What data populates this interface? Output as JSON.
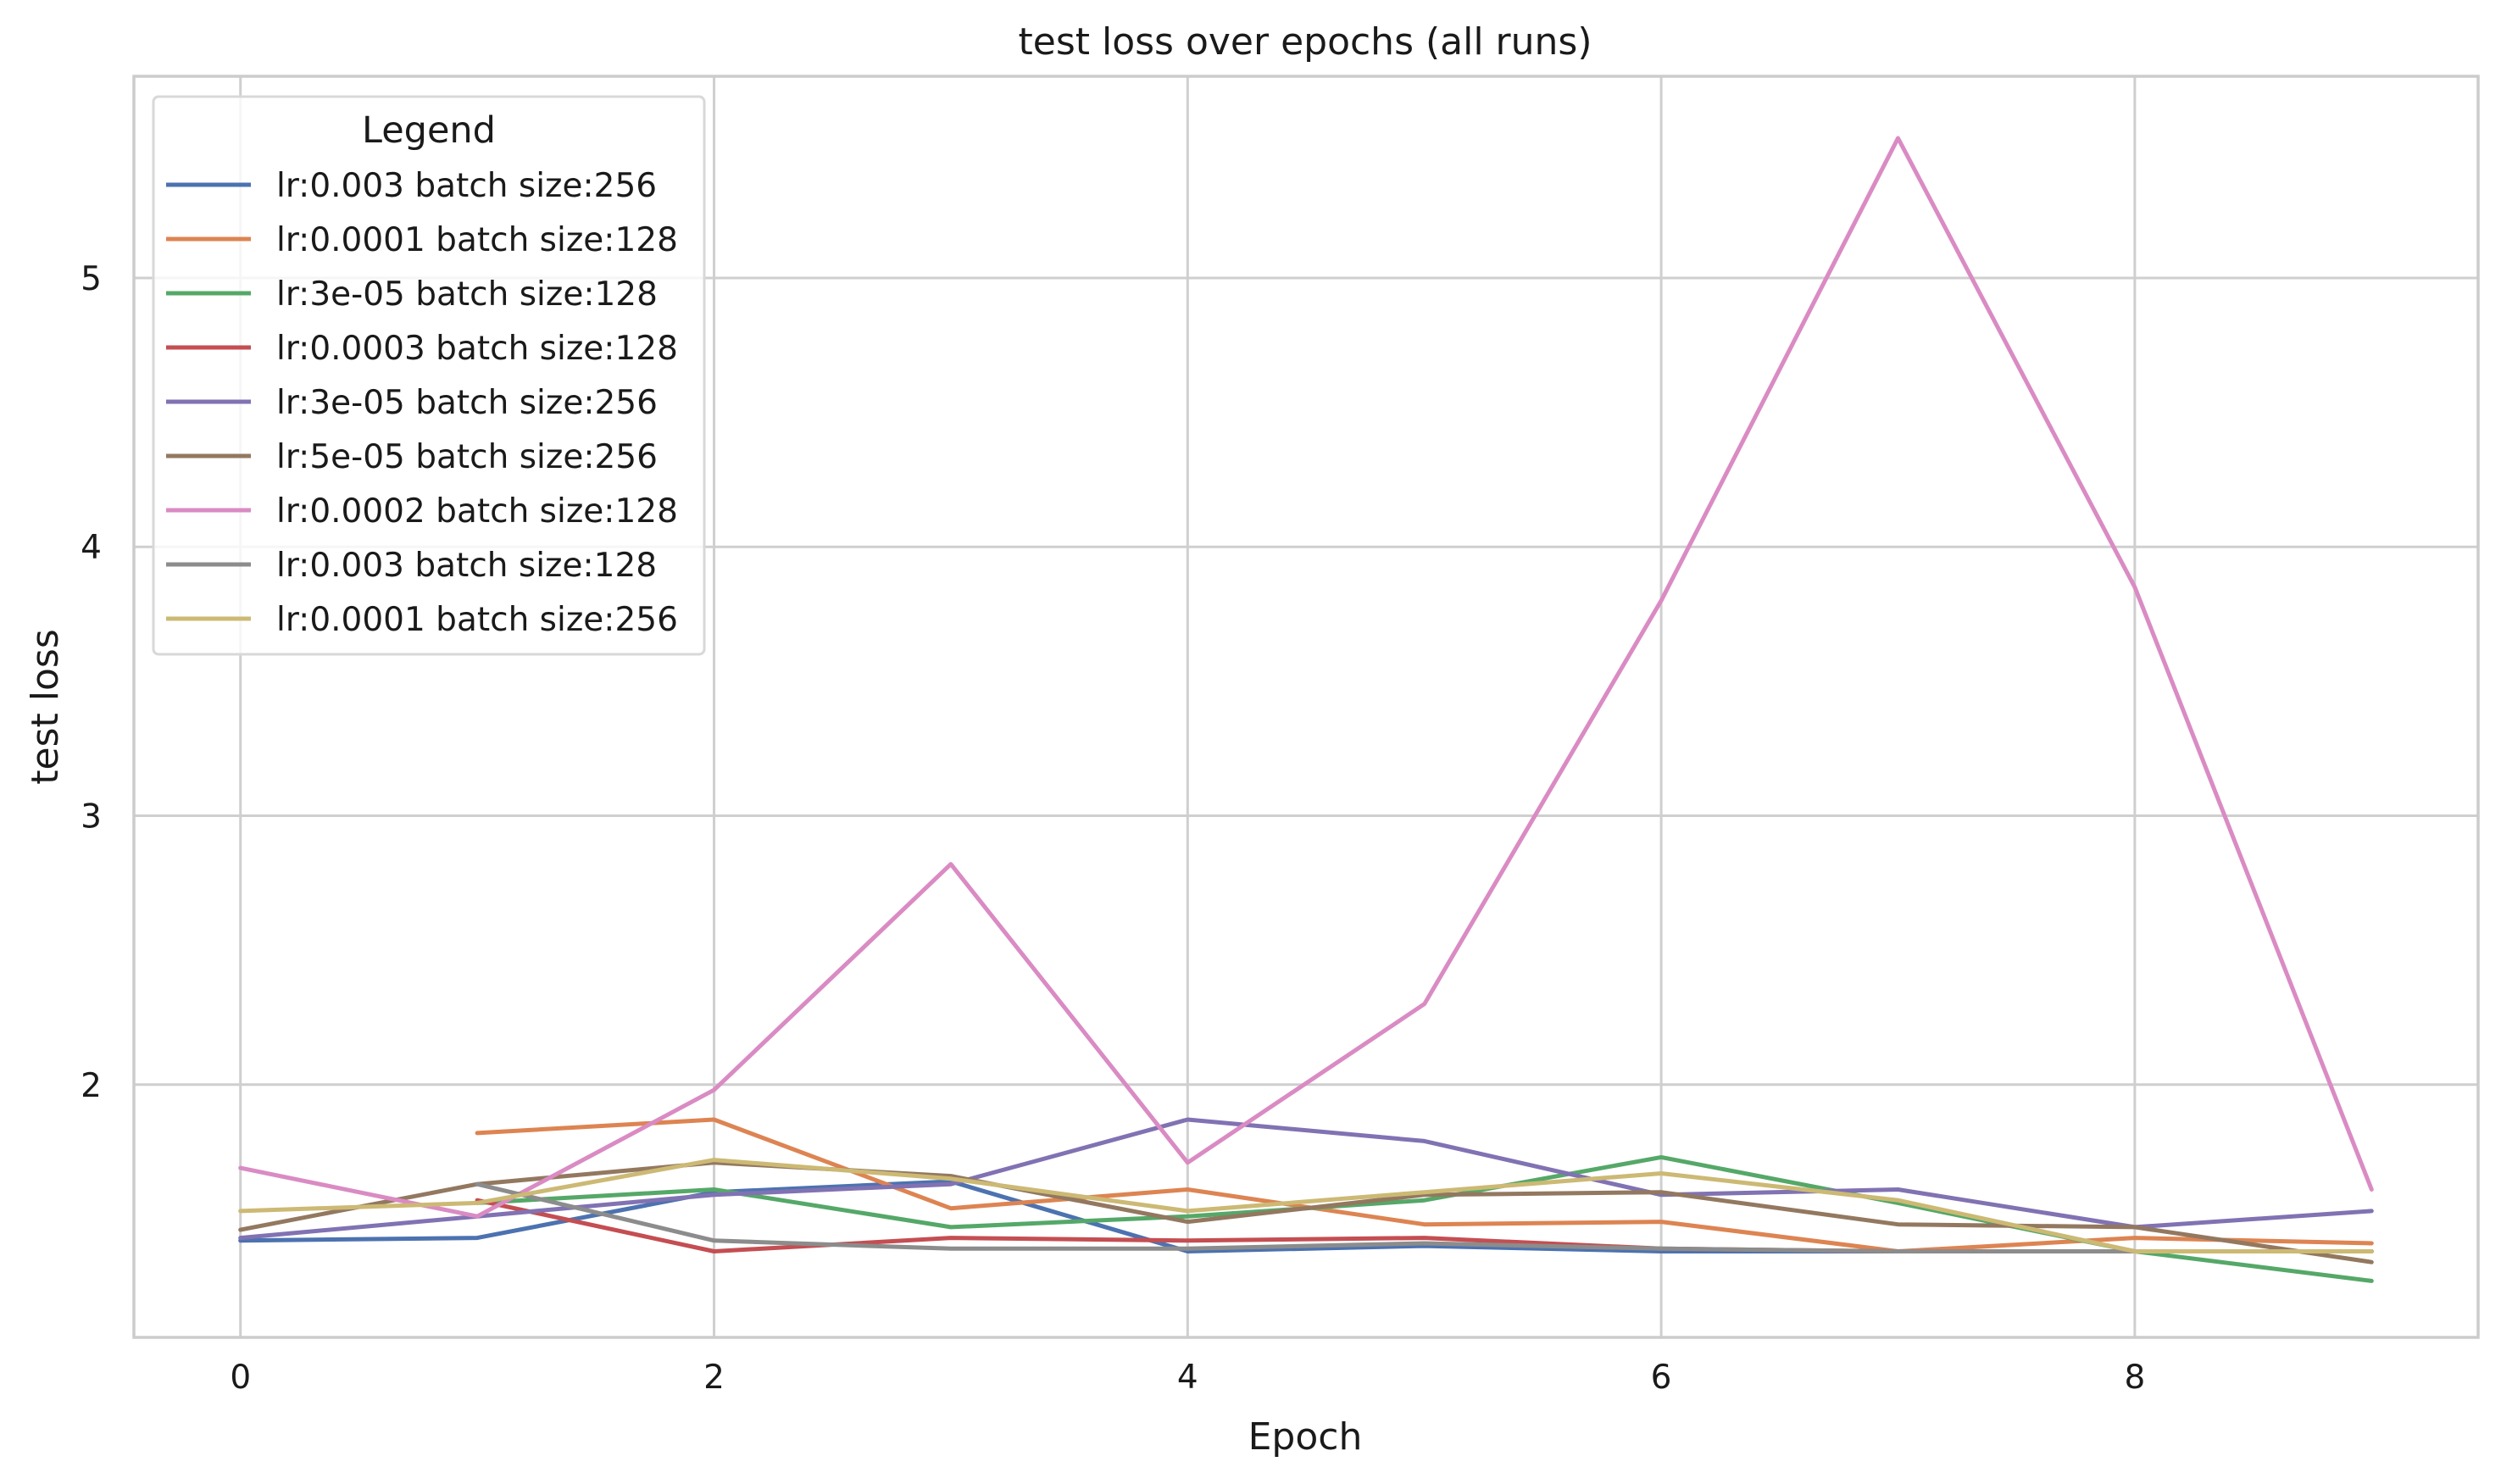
{
  "chart_data": {
    "type": "line",
    "title": "test loss over epochs (all runs)",
    "xlabel": "Epoch",
    "ylabel": "test loss",
    "xlim": [
      -0.45,
      9.45
    ],
    "ylim": [
      1.06,
      5.75
    ],
    "xticks": [
      0,
      2,
      4,
      6,
      8
    ],
    "yticks": [
      2,
      3,
      4,
      5
    ],
    "grid": true,
    "legend": {
      "title": "Legend",
      "placement": "top-left"
    },
    "series": [
      {
        "name": "lr:0.003 batch size:256",
        "color": "#4c72b0",
        "x": [
          0,
          1,
          2,
          3,
          4,
          5,
          6,
          7,
          8,
          9
        ],
        "values": [
          1.42,
          1.43,
          1.6,
          1.64,
          1.38,
          1.4,
          1.38,
          1.38,
          1.38,
          1.38
        ]
      },
      {
        "name": "lr:0.0001 batch size:128",
        "color": "#dd8452",
        "x": [
          1,
          2,
          3,
          4,
          5,
          6,
          7,
          8,
          9
        ],
        "values": [
          1.82,
          1.87,
          1.54,
          1.61,
          1.48,
          1.49,
          1.38,
          1.43,
          1.41
        ]
      },
      {
        "name": "lr:3e-05 batch size:128",
        "color": "#55a868",
        "x": [
          1,
          2,
          3,
          4,
          5,
          6,
          7,
          8,
          9
        ],
        "values": [
          1.56,
          1.61,
          1.47,
          1.51,
          1.57,
          1.73,
          1.56,
          1.38,
          1.27
        ]
      },
      {
        "name": "lr:0.0003 batch size:128",
        "color": "#c44e52",
        "x": [
          1,
          2,
          3,
          4,
          5,
          6,
          7,
          8,
          9
        ],
        "values": [
          1.57,
          1.38,
          1.43,
          1.42,
          1.43,
          1.39,
          1.38,
          1.38,
          1.38
        ]
      },
      {
        "name": "lr:3e-05 batch size:256",
        "color": "#8172b3",
        "x": [
          0,
          1,
          2,
          3,
          4,
          5,
          6,
          7,
          8,
          9
        ],
        "values": [
          1.43,
          1.51,
          1.59,
          1.63,
          1.87,
          1.79,
          1.59,
          1.61,
          1.47,
          1.53
        ]
      },
      {
        "name": "lr:5e-05 batch size:256",
        "color": "#937860",
        "x": [
          0,
          1,
          2,
          3,
          4,
          5,
          6,
          7,
          8,
          9
        ],
        "values": [
          1.46,
          1.63,
          1.71,
          1.66,
          1.49,
          1.59,
          1.6,
          1.48,
          1.47,
          1.34
        ]
      },
      {
        "name": "lr:0.0002 batch size:128",
        "color": "#da8bc3",
        "x": [
          0,
          1,
          2,
          3,
          4,
          5,
          6,
          7,
          8,
          9
        ],
        "values": [
          1.69,
          1.51,
          1.98,
          2.82,
          1.71,
          2.3,
          3.8,
          5.52,
          3.85,
          1.61
        ]
      },
      {
        "name": "lr:0.003 batch size:128",
        "color": "#8c8c8c",
        "x": [
          1,
          2,
          3,
          4,
          5,
          6,
          7,
          8,
          9
        ],
        "values": [
          1.63,
          1.42,
          1.39,
          1.39,
          1.41,
          1.39,
          1.38,
          1.38,
          1.38
        ]
      },
      {
        "name": "lr:0.0001 batch size:256",
        "color": "#ccb974",
        "x": [
          0,
          1,
          2,
          3,
          4,
          5,
          6,
          7,
          8,
          9
        ],
        "values": [
          1.53,
          1.56,
          1.72,
          1.65,
          1.53,
          1.6,
          1.67,
          1.57,
          1.38,
          1.38
        ]
      }
    ]
  }
}
